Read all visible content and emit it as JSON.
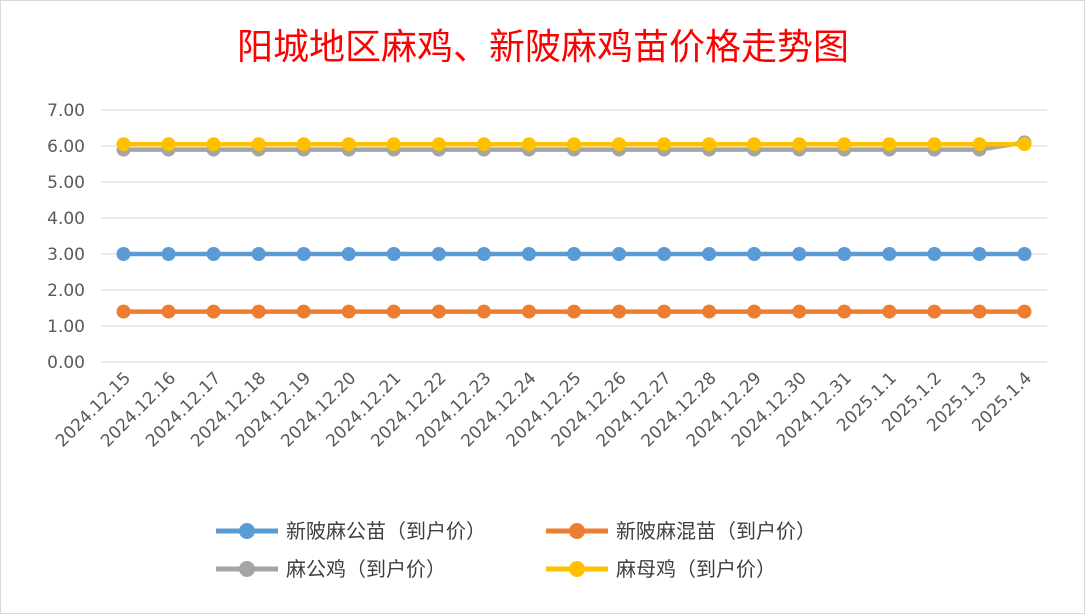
{
  "chart_data": {
    "type": "line",
    "title": "阳城地区麻鸡、新陂麻鸡苗价格走势图",
    "xlabel": "",
    "ylabel": "",
    "categories": [
      "2024.12.15",
      "2024.12.16",
      "2024.12.17",
      "2024.12.18",
      "2024.12.19",
      "2024.12.20",
      "2024.12.21",
      "2024.12.22",
      "2024.12.23",
      "2024.12.24",
      "2024.12.25",
      "2024.12.26",
      "2024.12.27",
      "2024.12.28",
      "2024.12.29",
      "2024.12.30",
      "2024.12.31",
      "2025.1.1",
      "2025.1.2",
      "2025.1.3",
      "2025.1.4"
    ],
    "ylim": [
      0,
      7
    ],
    "yticks": [
      "0.00",
      "1.00",
      "2.00",
      "3.00",
      "4.00",
      "5.00",
      "6.00",
      "7.00"
    ],
    "grid": true,
    "legend_position": "bottom",
    "series": [
      {
        "name": "新陂麻公苗（到户价）",
        "color": "#5b9bd5",
        "values": [
          3.0,
          3.0,
          3.0,
          3.0,
          3.0,
          3.0,
          3.0,
          3.0,
          3.0,
          3.0,
          3.0,
          3.0,
          3.0,
          3.0,
          3.0,
          3.0,
          3.0,
          3.0,
          3.0,
          3.0,
          3.0
        ]
      },
      {
        "name": "新陂麻混苗（到户价）",
        "color": "#ed7d31",
        "values": [
          1.4,
          1.4,
          1.4,
          1.4,
          1.4,
          1.4,
          1.4,
          1.4,
          1.4,
          1.4,
          1.4,
          1.4,
          1.4,
          1.4,
          1.4,
          1.4,
          1.4,
          1.4,
          1.4,
          1.4,
          1.4
        ]
      },
      {
        "name": "麻公鸡（到户价）",
        "color": "#a5a5a5",
        "values": [
          5.9,
          5.9,
          5.9,
          5.9,
          5.9,
          5.9,
          5.9,
          5.9,
          5.9,
          5.9,
          5.9,
          5.9,
          5.9,
          5.9,
          5.9,
          5.9,
          5.9,
          5.9,
          5.9,
          5.9,
          6.1
        ]
      },
      {
        "name": "麻母鸡（到户价）",
        "color": "#ffc000",
        "values": [
          6.05,
          6.05,
          6.05,
          6.05,
          6.05,
          6.05,
          6.05,
          6.05,
          6.05,
          6.05,
          6.05,
          6.05,
          6.05,
          6.05,
          6.05,
          6.05,
          6.05,
          6.05,
          6.05,
          6.05,
          6.05
        ]
      }
    ]
  }
}
